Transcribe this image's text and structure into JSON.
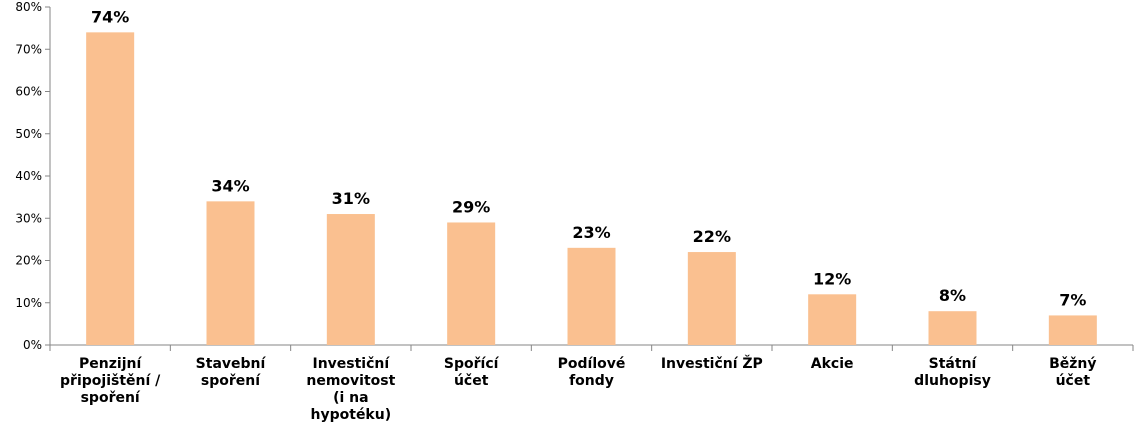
{
  "chart_data": {
    "type": "bar",
    "categories": [
      "Penzijní připojištění / spoření",
      "Stavební spoření",
      "Investiční nemovitost (i na hypotéku)",
      "Spořící účet",
      "Podílové fondy",
      "Investiční ŽP",
      "Akcie",
      "Státní dluhopisy",
      "Běžný účet"
    ],
    "category_lines": [
      [
        "Penzijní",
        "připojištění /",
        "spoření"
      ],
      [
        "Stavební",
        "spoření"
      ],
      [
        "Investiční",
        "nemovitost",
        "(i na",
        "hypotéku)"
      ],
      [
        "Spořící",
        "účet"
      ],
      [
        "Podílové",
        "fondy"
      ],
      [
        "Investiční ŽP"
      ],
      [
        "Akcie"
      ],
      [
        "Státní",
        "dluhopisy"
      ],
      [
        "Běžný",
        "účet"
      ]
    ],
    "values": [
      74,
      34,
      31,
      29,
      23,
      22,
      12,
      8,
      7
    ],
    "data_labels": [
      "74%",
      "34%",
      "31%",
      "29%",
      "23%",
      "22%",
      "12%",
      "8%",
      "7%"
    ],
    "yticks": [
      "0%",
      "10%",
      "20%",
      "30%",
      "40%",
      "50%",
      "60%",
      "70%",
      "80%"
    ],
    "ylim": [
      0,
      80
    ],
    "unit": "%",
    "grid": false,
    "legend": "none",
    "bar_color": "#FAC090",
    "axis_color": "#868686"
  }
}
